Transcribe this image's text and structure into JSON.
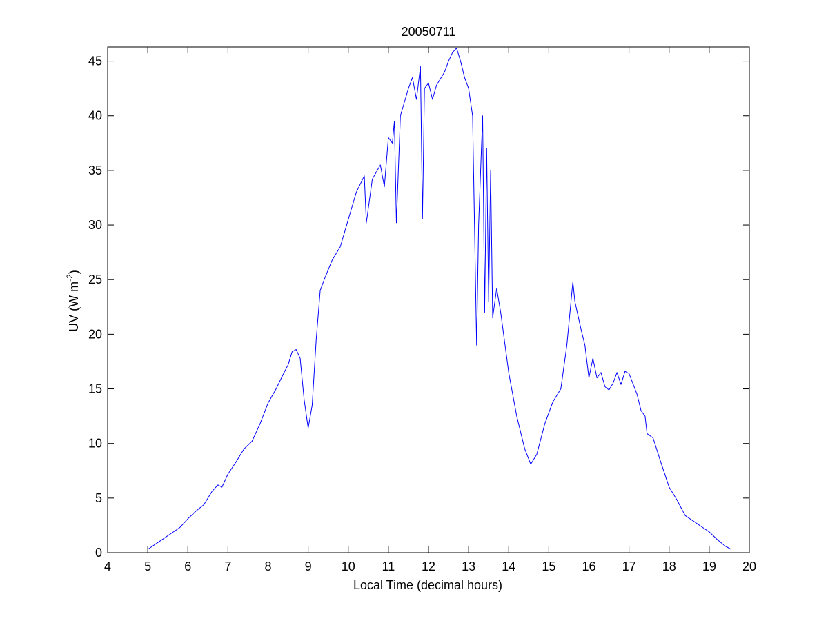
{
  "chart_data": {
    "type": "line",
    "title": "20050711",
    "xlabel": "Local Time (decimal hours)",
    "ylabel_main": "UV (W m",
    "ylabel_sup": "-2",
    "ylabel_close": ")",
    "xlim": [
      4,
      20
    ],
    "ylim": [
      0,
      46.3
    ],
    "xticks": [
      4,
      5,
      6,
      7,
      8,
      9,
      10,
      11,
      12,
      13,
      14,
      15,
      16,
      17,
      18,
      19,
      20
    ],
    "yticks": [
      0,
      5,
      10,
      15,
      20,
      25,
      30,
      35,
      40,
      45
    ],
    "grid": false,
    "line_color": "#0000ff",
    "series": [
      {
        "x": [
          5.0,
          5.2,
          5.4,
          5.6,
          5.8,
          6.0,
          6.2,
          6.4,
          6.6,
          6.75,
          6.85,
          7.0,
          7.2,
          7.4,
          7.6,
          7.8,
          8.0,
          8.2,
          8.4,
          8.5,
          8.6,
          8.7,
          8.8,
          8.9,
          9.0,
          9.1,
          9.2,
          9.3,
          9.4,
          9.6,
          9.8,
          10.0,
          10.2,
          10.4,
          10.45,
          10.6,
          10.8,
          10.9,
          11.0,
          11.1,
          11.15,
          11.2,
          11.3,
          11.5,
          11.6,
          11.7,
          11.8,
          11.85,
          11.9,
          12.0,
          12.1,
          12.2,
          12.4,
          12.5,
          12.6,
          12.7,
          12.8,
          12.9,
          13.0,
          13.1,
          13.2,
          13.25,
          13.35,
          13.4,
          13.45,
          13.5,
          13.55,
          13.6,
          13.7,
          13.8,
          14.0,
          14.2,
          14.4,
          14.55,
          14.7,
          14.9,
          15.1,
          15.3,
          15.45,
          15.6,
          15.65,
          15.8,
          15.9,
          16.0,
          16.1,
          16.2,
          16.3,
          16.4,
          16.5,
          16.6,
          16.7,
          16.8,
          16.9,
          17.0,
          17.2,
          17.3,
          17.4,
          17.45,
          17.6,
          17.8,
          18.0,
          18.2,
          18.4,
          18.6,
          18.8,
          19.0,
          19.2,
          19.4,
          19.55
        ],
        "y": [
          0.3,
          0.8,
          1.3,
          1.8,
          2.3,
          3.1,
          3.8,
          4.4,
          5.6,
          6.2,
          6.0,
          7.2,
          8.3,
          9.5,
          10.2,
          11.8,
          13.7,
          15.0,
          16.5,
          17.2,
          18.4,
          18.6,
          17.8,
          14.0,
          11.4,
          13.5,
          19.5,
          24.0,
          25.0,
          26.8,
          28.0,
          30.5,
          33.0,
          34.5,
          30.2,
          34.2,
          35.5,
          33.5,
          38.0,
          37.5,
          39.5,
          30.2,
          40.0,
          42.5,
          43.5,
          41.5,
          44.5,
          30.6,
          42.5,
          43.0,
          41.5,
          42.8,
          44.0,
          45.0,
          45.8,
          46.2,
          45.0,
          43.5,
          42.5,
          40.0,
          19.0,
          30.0,
          40.0,
          22.0,
          37.0,
          23.0,
          35.0,
          21.5,
          24.2,
          22.0,
          16.5,
          12.5,
          9.5,
          8.1,
          9.0,
          11.8,
          13.8,
          15.0,
          19.0,
          24.8,
          23.0,
          20.5,
          19.0,
          16.0,
          17.8,
          16.0,
          16.5,
          15.2,
          14.9,
          15.5,
          16.5,
          15.4,
          16.6,
          16.4,
          14.5,
          13.0,
          12.5,
          10.9,
          10.5,
          8.2,
          6.0,
          4.8,
          3.4,
          2.9,
          2.4,
          1.9,
          1.2,
          0.6,
          0.3
        ]
      }
    ]
  }
}
